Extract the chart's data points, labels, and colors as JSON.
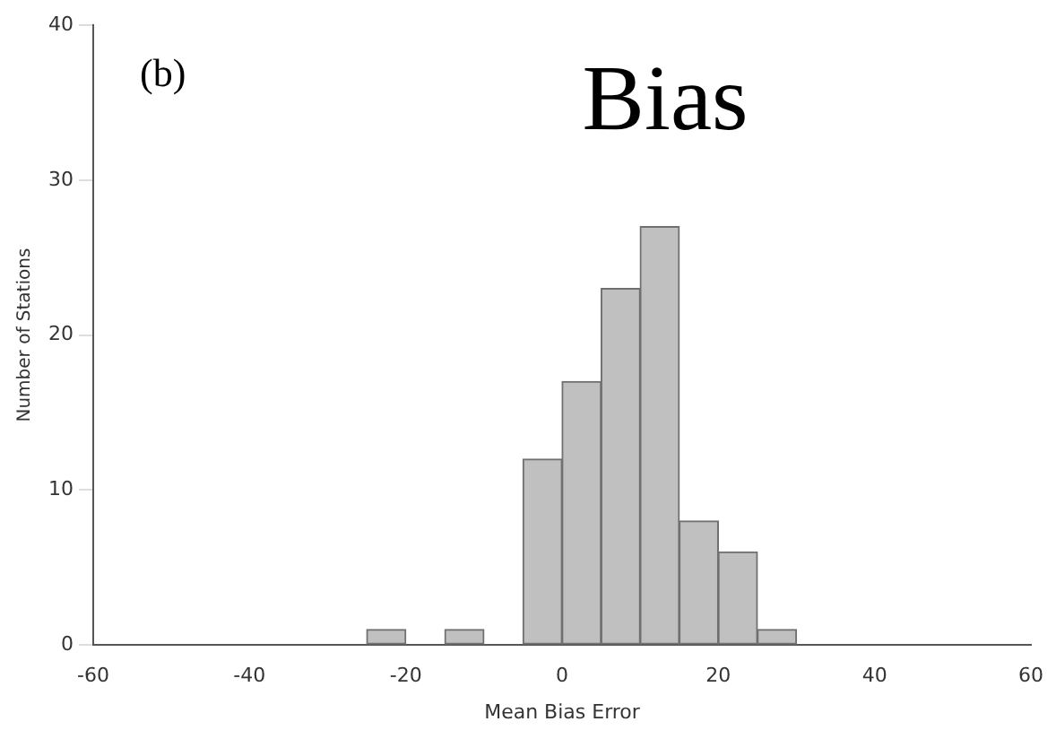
{
  "chart_data": {
    "type": "histogram",
    "title": "Bias",
    "annotations": [
      "(b)"
    ],
    "xlabel": "Mean Bias Error",
    "ylabel": "Number of Stations",
    "bins": [
      -60,
      -55,
      -50,
      -45,
      -40,
      -35,
      -30,
      -25,
      -20,
      -15,
      -10,
      -5,
      0,
      5,
      10,
      15,
      20,
      25,
      30,
      35,
      40,
      45,
      50,
      55,
      60
    ],
    "values": [
      0,
      0,
      0,
      0,
      0,
      0,
      0,
      1,
      0,
      1,
      0,
      12,
      17,
      23,
      27,
      8,
      6,
      1,
      0,
      0,
      0,
      0,
      0,
      0
    ],
    "color": "#c0c0c0",
    "xlim": [
      -60,
      60
    ],
    "xticks": [
      -60,
      -40,
      -20,
      0,
      20,
      40,
      60
    ],
    "ylim": [
      0,
      40
    ],
    "yticks": [
      0,
      10,
      20,
      30,
      40
    ],
    "grid": false,
    "legend": false
  }
}
